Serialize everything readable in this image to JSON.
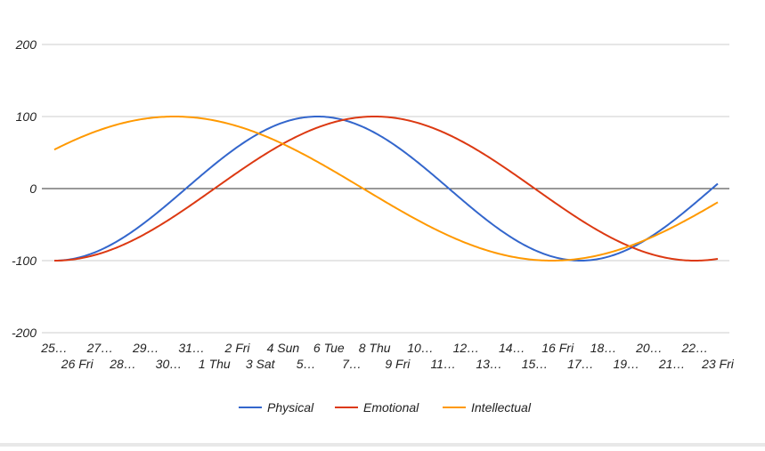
{
  "chart_data": {
    "type": "line",
    "grid": true,
    "legend_position": "bottom",
    "ylim": [
      -200,
      200
    ],
    "yticks": [
      -200,
      -100,
      0,
      100,
      200
    ],
    "x_tick_labels": [
      "25…",
      "26 Fri",
      "27…",
      "28…",
      "29…",
      "30…",
      "31…",
      "1 Thu",
      "2 Fri",
      "3 Sat",
      "4 Sun",
      "5…",
      "6 Tue",
      "7…",
      "8 Thu",
      "9 Fri",
      "10…",
      "11…",
      "12…",
      "13…",
      "14…",
      "15…",
      "16 Fri",
      "17…",
      "18…",
      "19…",
      "20…",
      "21…",
      "22…",
      "23 Fri"
    ],
    "series": [
      {
        "name": "Physical",
        "color": "#3366cc",
        "cycle_days": 23,
        "phase": 17.25
      },
      {
        "name": "Emotional",
        "color": "#dc3912",
        "cycle_days": 28,
        "phase": 21
      },
      {
        "name": "Intellectual",
        "color": "#ff9900",
        "cycle_days": 33,
        "phase": 3.0
      }
    ],
    "amplitude": 100
  }
}
